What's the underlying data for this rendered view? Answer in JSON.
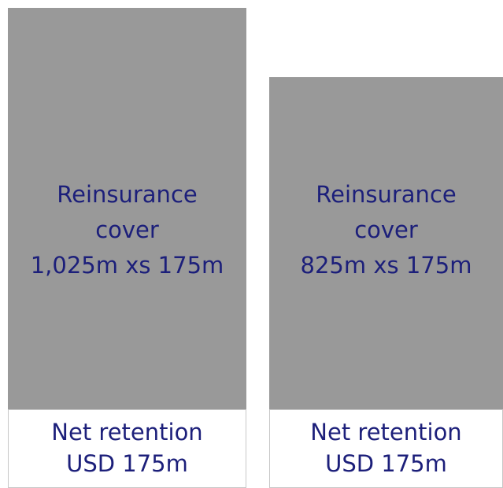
{
  "columns": [
    {
      "cover": [
        "Reinsurance",
        "cover",
        "1,025m xs 175m"
      ],
      "retention": [
        "Net retention",
        "USD 175m"
      ]
    },
    {
      "cover": [
        "Reinsurance",
        "cover",
        "825m xs 175m"
      ],
      "retention": [
        "Net retention",
        "USD 175m"
      ]
    }
  ]
}
